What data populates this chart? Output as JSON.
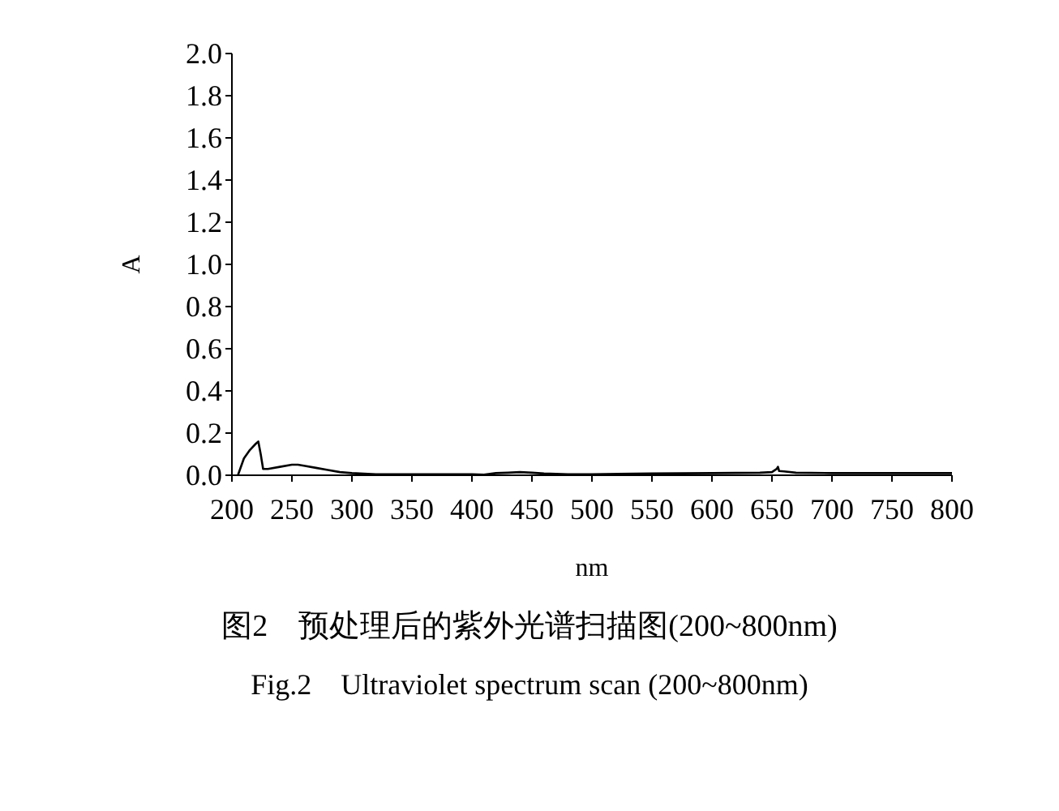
{
  "chart_data": {
    "type": "line",
    "xlabel": "nm",
    "ylabel": "A",
    "x": [
      205,
      210,
      215,
      220,
      222,
      224,
      226,
      230,
      240,
      250,
      255,
      260,
      270,
      280,
      290,
      300,
      320,
      350,
      380,
      400,
      410,
      420,
      430,
      440,
      450,
      460,
      480,
      500,
      550,
      600,
      640,
      650,
      654,
      655,
      656,
      660,
      670,
      700,
      750,
      800
    ],
    "series": [
      {
        "color": "#000000",
        "values": [
          0,
          0.08,
          0.12,
          0.15,
          0.16,
          0.1,
          0.03,
          0.03,
          0.04,
          0.05,
          0.05,
          0.045,
          0.035,
          0.025,
          0.015,
          0.01,
          0.005,
          0.005,
          0.005,
          0.005,
          0.003,
          0.01,
          0.012,
          0.015,
          0.012,
          0.008,
          0.005,
          0.005,
          0.008,
          0.01,
          0.012,
          0.015,
          0.03,
          0.04,
          0.02,
          0.018,
          0.012,
          0.01,
          0.01,
          0.01
        ]
      }
    ],
    "xlim": [
      200,
      800
    ],
    "xticks": [
      200,
      250,
      300,
      350,
      400,
      450,
      500,
      550,
      600,
      650,
      700,
      750,
      800
    ],
    "ylim": [
      0,
      2.0
    ],
    "yticks": [
      {
        "value": 0,
        "label": "0.0"
      },
      {
        "value": 0.2,
        "label": "0.2"
      },
      {
        "value": 0.4,
        "label": "0.4"
      },
      {
        "value": 0.6,
        "label": "0.6"
      },
      {
        "value": 0.8,
        "label": "0.8"
      },
      {
        "value": 1.0,
        "label": "1.0"
      },
      {
        "value": 1.2,
        "label": "1.2"
      },
      {
        "value": 1.4,
        "label": "1.4"
      },
      {
        "value": 1.6,
        "label": "1.6"
      },
      {
        "value": 1.8,
        "label": "1.8"
      },
      {
        "value": 2.0,
        "label": "2.0"
      }
    ],
    "grid": false,
    "marker": "none",
    "line_style": "solid",
    "annotations": [
      "图2　预处理后的紫外光谱扫描图(200~800nm)",
      "Fig.2　Ultraviolet spectrum scan (200~800nm)"
    ]
  }
}
